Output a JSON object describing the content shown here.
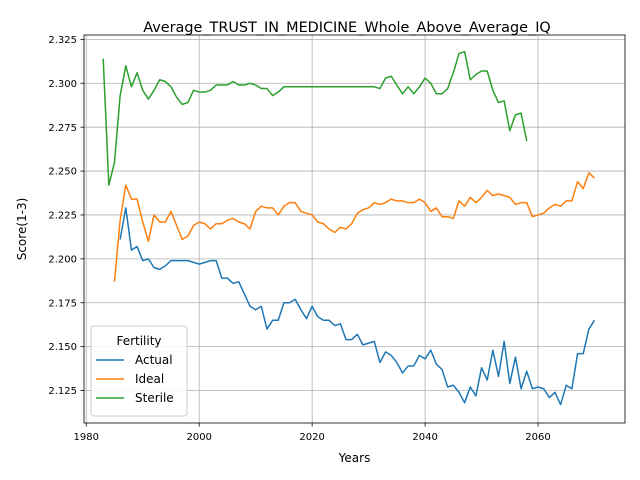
{
  "chart_data": {
    "type": "line",
    "title": "Average_TRUST_IN_MEDICINE_Whole_Above_Average_IQ",
    "xlabel": "Years",
    "ylabel": "Score(1-3)",
    "xlim": [
      1979.6,
      2075.4
    ],
    "ylim": [
      2.1065,
      2.3275
    ],
    "xticks": [
      1980,
      2000,
      2020,
      2040,
      2060
    ],
    "yticks": [
      2.125,
      2.15,
      2.175,
      2.2,
      2.225,
      2.25,
      2.275,
      2.3,
      2.325
    ],
    "ytick_labels": [
      "2.125",
      "2.150",
      "2.175",
      "2.200",
      "2.225",
      "2.250",
      "2.275",
      "2.300",
      "2.325"
    ],
    "grid": true,
    "legend": {
      "title": "Fertility",
      "placement": "lower-left"
    },
    "series": [
      {
        "name": "Actual",
        "color": "#1f77b4",
        "x": [
          1986,
          1987,
          1988,
          1989,
          1990,
          1991,
          1992,
          1993,
          1994,
          1995,
          1996,
          1997,
          1998,
          1999,
          2000,
          2001,
          2002,
          2003,
          2004,
          2005,
          2006,
          2007,
          2008,
          2009,
          2010,
          2011,
          2012,
          2013,
          2014,
          2015,
          2016,
          2017,
          2018,
          2019,
          2020,
          2021,
          2022,
          2023,
          2024,
          2025,
          2026,
          2027,
          2028,
          2029,
          2030,
          2031,
          2032,
          2033,
          2034,
          2035,
          2036,
          2037,
          2038,
          2039,
          2040,
          2041,
          2042,
          2043,
          2044,
          2045,
          2046,
          2047,
          2048,
          2049,
          2050,
          2051,
          2052,
          2053,
          2054,
          2055,
          2056,
          2057,
          2058,
          2059,
          2060,
          2061,
          2062,
          2063,
          2064,
          2065,
          2066,
          2067,
          2068,
          2069,
          2070
        ],
        "values": [
          2.211,
          2.229,
          2.205,
          2.207,
          2.199,
          2.2,
          2.195,
          2.194,
          2.196,
          2.199,
          2.199,
          2.199,
          2.199,
          2.198,
          2.197,
          2.198,
          2.199,
          2.199,
          2.189,
          2.189,
          2.186,
          2.187,
          2.18,
          2.173,
          2.171,
          2.173,
          2.16,
          2.165,
          2.165,
          2.175,
          2.175,
          2.177,
          2.171,
          2.166,
          2.173,
          2.167,
          2.165,
          2.165,
          2.162,
          2.163,
          2.154,
          2.154,
          2.157,
          2.151,
          2.152,
          2.153,
          2.141,
          2.147,
          2.145,
          2.141,
          2.135,
          2.139,
          2.139,
          2.145,
          2.143,
          2.148,
          2.14,
          2.137,
          2.127,
          2.128,
          2.124,
          2.118,
          2.127,
          2.122,
          2.138,
          2.131,
          2.148,
          2.133,
          2.153,
          2.129,
          2.144,
          2.126,
          2.136,
          2.126,
          2.127,
          2.126,
          2.121,
          2.124,
          2.117,
          2.128,
          2.126,
          2.146,
          2.146,
          2.16,
          2.165
        ]
      },
      {
        "name": "Ideal",
        "color": "#ff7f0e",
        "x": [
          1985,
          1986,
          1987,
          1988,
          1989,
          1990,
          1991,
          1992,
          1993,
          1994,
          1995,
          1996,
          1997,
          1998,
          1999,
          2000,
          2001,
          2002,
          2003,
          2004,
          2005,
          2006,
          2007,
          2008,
          2009,
          2010,
          2011,
          2012,
          2013,
          2014,
          2015,
          2016,
          2017,
          2018,
          2019,
          2020,
          2021,
          2022,
          2023,
          2024,
          2025,
          2026,
          2027,
          2028,
          2029,
          2030,
          2031,
          2032,
          2033,
          2034,
          2035,
          2036,
          2037,
          2038,
          2039,
          2040,
          2041,
          2042,
          2043,
          2044,
          2045,
          2046,
          2047,
          2048,
          2049,
          2050,
          2051,
          2052,
          2053,
          2054,
          2055,
          2056,
          2057,
          2058,
          2059,
          2060,
          2061,
          2062,
          2063,
          2064,
          2065,
          2066,
          2067,
          2068,
          2069,
          2070
        ],
        "values": [
          2.187,
          2.222,
          2.242,
          2.234,
          2.234,
          2.221,
          2.21,
          2.225,
          2.221,
          2.221,
          2.227,
          2.219,
          2.211,
          2.213,
          2.219,
          2.221,
          2.22,
          2.217,
          2.22,
          2.22,
          2.222,
          2.223,
          2.221,
          2.22,
          2.217,
          2.227,
          2.23,
          2.229,
          2.229,
          2.225,
          2.23,
          2.232,
          2.232,
          2.227,
          2.226,
          2.225,
          2.221,
          2.22,
          2.217,
          2.215,
          2.218,
          2.217,
          2.22,
          2.226,
          2.228,
          2.229,
          2.232,
          2.231,
          2.232,
          2.234,
          2.233,
          2.233,
          2.232,
          2.232,
          2.234,
          2.232,
          2.227,
          2.229,
          2.224,
          2.224,
          2.223,
          2.233,
          2.23,
          2.235,
          2.232,
          2.235,
          2.239,
          2.236,
          2.237,
          2.236,
          2.235,
          2.231,
          2.232,
          2.232,
          2.224,
          2.225,
          2.226,
          2.229,
          2.231,
          2.23,
          2.233,
          2.233,
          2.244,
          2.24,
          2.249,
          2.246
        ]
      },
      {
        "name": "Sterile",
        "color": "#2ca02c",
        "x": [
          1983,
          1984,
          1985,
          1986,
          1987,
          1988,
          1989,
          1990,
          1991,
          1992,
          1993,
          1994,
          1995,
          1996,
          1997,
          1998,
          1999,
          2000,
          2001,
          2002,
          2003,
          2004,
          2005,
          2006,
          2007,
          2008,
          2009,
          2010,
          2011,
          2012,
          2013,
          2014,
          2015,
          2016,
          2017,
          2018,
          2019,
          2020,
          2021,
          2022,
          2023,
          2024,
          2025,
          2026,
          2027,
          2028,
          2029,
          2030,
          2031,
          2032,
          2033,
          2034,
          2035,
          2036,
          2037,
          2038,
          2039,
          2040,
          2041,
          2042,
          2043,
          2044,
          2045,
          2046,
          2047,
          2048,
          2049,
          2050,
          2051,
          2052,
          2053,
          2054,
          2055,
          2056,
          2057,
          2058
        ],
        "values": [
          2.314,
          2.242,
          2.255,
          2.293,
          2.31,
          2.298,
          2.306,
          2.296,
          2.291,
          2.296,
          2.302,
          2.301,
          2.298,
          2.292,
          2.288,
          2.289,
          2.296,
          2.295,
          2.295,
          2.296,
          2.299,
          2.299,
          2.299,
          2.301,
          2.299,
          2.299,
          2.3,
          2.299,
          2.297,
          2.297,
          2.293,
          2.295,
          2.298,
          2.298,
          2.298,
          2.298,
          2.298,
          2.298,
          2.298,
          2.298,
          2.298,
          2.298,
          2.298,
          2.298,
          2.298,
          2.298,
          2.298,
          2.298,
          2.298,
          2.297,
          2.303,
          2.304,
          2.299,
          2.294,
          2.298,
          2.294,
          2.298,
          2.303,
          2.3,
          2.294,
          2.294,
          2.297,
          2.306,
          2.317,
          2.318,
          2.302,
          2.305,
          2.307,
          2.307,
          2.296,
          2.289,
          2.29,
          2.273,
          2.282,
          2.283,
          2.267
        ]
      }
    ]
  }
}
